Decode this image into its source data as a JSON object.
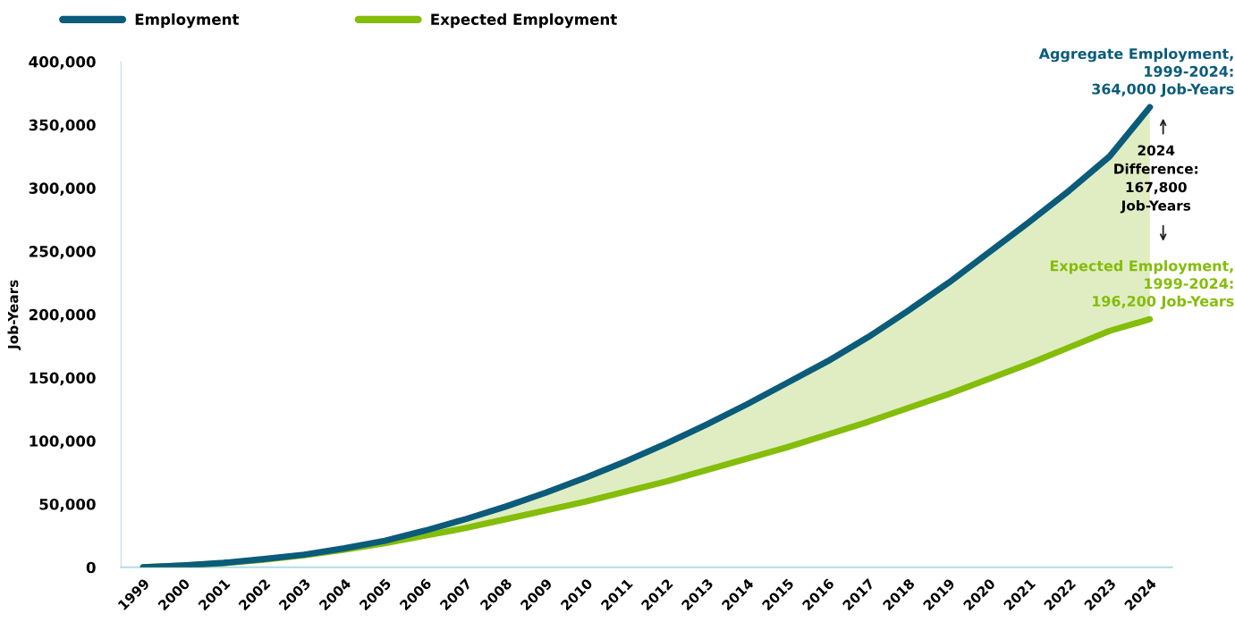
{
  "chart_data": {
    "type": "line",
    "ylabel": "Job-Years",
    "categories": [
      "1999",
      "2000",
      "2001",
      "2002",
      "2003",
      "2004",
      "2005",
      "2006",
      "2007",
      "2008",
      "2009",
      "2010",
      "2011",
      "2012",
      "2013",
      "2014",
      "2015",
      "2016",
      "2017",
      "2018",
      "2019",
      "2020",
      "2021",
      "2022",
      "2023",
      "2024"
    ],
    "series": [
      {
        "name": "Employment",
        "color": "#0b5b7a",
        "values": [
          0,
          1500,
          3500,
          6500,
          10000,
          15000,
          21000,
          29000,
          38000,
          48000,
          59000,
          71000,
          84000,
          98000,
          113000,
          129000,
          146000,
          163000,
          182000,
          203000,
          225000,
          249000,
          273000,
          298000,
          325000,
          364000
        ],
        "lower": [
          0,
          1500,
          3200,
          6000,
          9500,
          14000,
          19000,
          25000,
          31000,
          38000,
          45000,
          52000,
          60000,
          68000,
          77000,
          86000,
          95000,
          105000,
          115000,
          126000,
          137000,
          149000,
          161000,
          174000,
          187000,
          196200
        ],
        "upper": [
          0,
          1500,
          3500,
          6500,
          10000,
          15000,
          21000,
          29000,
          38000,
          48000,
          59000,
          71000,
          84000,
          98000,
          113000,
          129000,
          146000,
          163000,
          182000,
          203000,
          225000,
          249000,
          273000,
          298000,
          325000,
          364000
        ]
      },
      {
        "name": "Expected Employment",
        "color": "#84bd0a",
        "values": [
          0,
          1500,
          3200,
          6000,
          9500,
          14000,
          19000,
          25000,
          31000,
          38000,
          45000,
          52000,
          60000,
          68000,
          77000,
          86000,
          95000,
          105000,
          115000,
          126000,
          137000,
          149000,
          161000,
          174000,
          187000,
          196200
        ]
      }
    ],
    "ylim": [
      0,
      400000
    ],
    "yticks": [
      {
        "value": 0,
        "label": "0"
      },
      {
        "value": 50000,
        "label": "50,000"
      },
      {
        "value": 100000,
        "label": "100,000"
      },
      {
        "value": 150000,
        "label": "150,000"
      },
      {
        "value": 200000,
        "label": "200,000"
      },
      {
        "value": 250000,
        "label": "250,000"
      },
      {
        "value": 300000,
        "label": "300,000"
      },
      {
        "value": 350000,
        "label": "350,000"
      },
      {
        "value": 400000,
        "label": "400,000"
      }
    ],
    "annotations": [
      {
        "text": "Aggregate Employment,\n1999-2024:\n364,000 Job-Years",
        "x": "2024",
        "y": 364000
      },
      {
        "text": "2024\nDifference:\n167,800\nJob-Years",
        "x": "2024",
        "y": 307000
      },
      {
        "text": "Expected Employment,\n1999-2024:\n196,200 Job-Years",
        "x": "2024",
        "y": 196200
      }
    ],
    "grid": false,
    "legend": "top left",
    "marker": "none",
    "line_style": "solid"
  }
}
